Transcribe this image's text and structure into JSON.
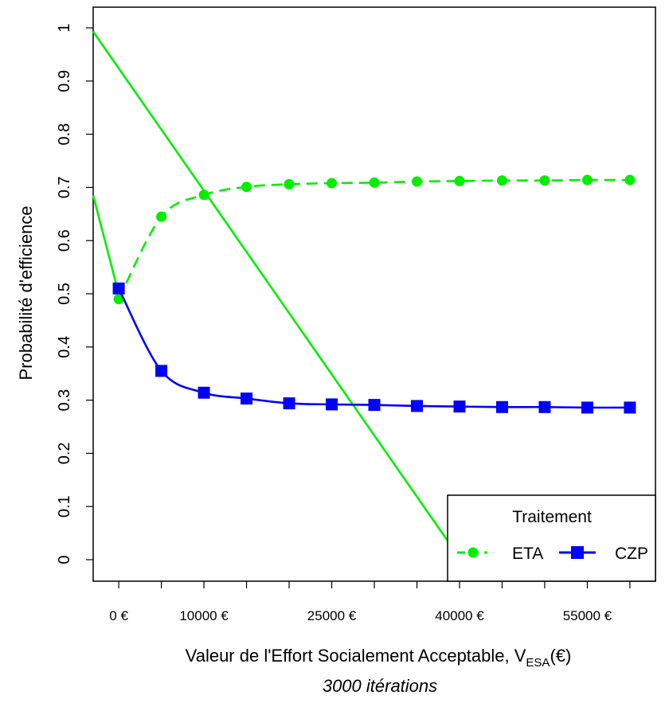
{
  "chart_data": {
    "type": "line",
    "ylabel": "Probabilité d'efficience",
    "xlabel_main": "Valeur de l'Effort Socialement Acceptable, V",
    "xlabel_sub": "ESA",
    "xlabel_end": "(€)",
    "subtitle": "3000 itérations",
    "ylim": [
      0,
      1
    ],
    "xlim": [
      -3000,
      63000
    ],
    "y_ticks": [
      "0",
      "0.1",
      "0.2",
      "0.3",
      "0.4",
      "0.5",
      "0.6",
      "0.7",
      "0.8",
      "0.9",
      "1"
    ],
    "x_tick_values": [
      0,
      5000,
      10000,
      15000,
      20000,
      25000,
      30000,
      35000,
      40000,
      45000,
      50000,
      55000,
      60000
    ],
    "x_tick_labels": [
      {
        "value": 0,
        "label": "0 €"
      },
      {
        "value": 10000,
        "label": "10000 €"
      },
      {
        "value": 25000,
        "label": "25000 €"
      },
      {
        "value": 40000,
        "label": "40000 €"
      },
      {
        "value": 55000,
        "label": "55000 €"
      }
    ],
    "legend": {
      "title": "Traitement",
      "position": "bottom-right",
      "entries": [
        "ETA",
        "CZP"
      ]
    },
    "series": [
      {
        "name": "ETA",
        "color": "#00ee00",
        "dash": "dashed",
        "marker": "circle",
        "x": [
          0,
          5000,
          10000,
          15000,
          20000,
          25000,
          30000,
          35000,
          40000,
          45000,
          50000,
          55000,
          60000
        ],
        "values": [
          0.49,
          0.645,
          0.686,
          0.701,
          0.706,
          0.708,
          0.709,
          0.711,
          0.712,
          0.713,
          0.713,
          0.714,
          0.714
        ]
      },
      {
        "name": "CZP",
        "color": "#0000ff",
        "dash": "solid",
        "marker": "square",
        "x": [
          0,
          5000,
          10000,
          15000,
          20000,
          25000,
          30000,
          35000,
          40000,
          45000,
          50000,
          55000,
          60000
        ],
        "values": [
          0.51,
          0.355,
          0.314,
          0.303,
          0.294,
          0.292,
          0.291,
          0.289,
          0.288,
          0.287,
          0.287,
          0.286,
          0.286
        ]
      }
    ],
    "straight_lines": [
      {
        "color": "#00ee00",
        "from": [
          -3000,
          0.993
        ],
        "to": [
          39500,
          0.015
        ]
      },
      {
        "color": "#00ee00",
        "from": [
          -3000,
          0.685
        ],
        "to": [
          0,
          0.5
        ]
      }
    ]
  }
}
